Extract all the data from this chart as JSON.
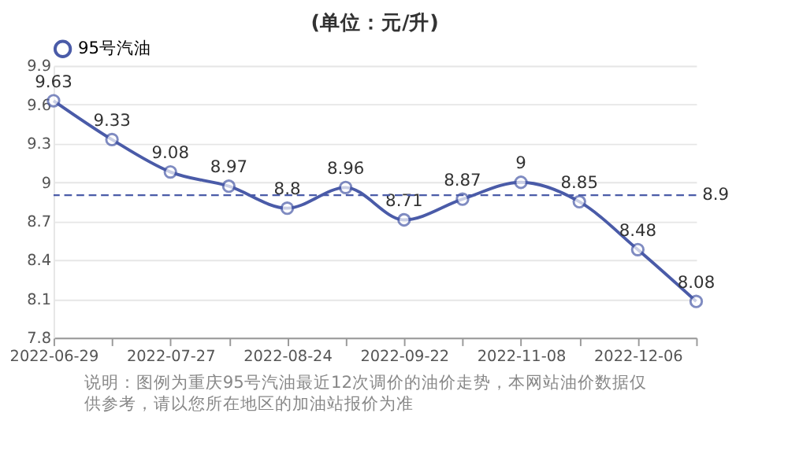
{
  "chart_data": {
    "type": "line",
    "title": "(单位：元/升)",
    "categories": [
      "2022-06-29",
      null,
      "2022-07-27",
      null,
      "2022-08-24",
      null,
      "2022-09-22",
      null,
      "2022-11-08",
      null,
      "2022-12-06",
      null
    ],
    "series": [
      {
        "name": "95号汽油",
        "color": "#4a5ba8",
        "values": [
          9.63,
          9.33,
          9.08,
          8.97,
          8.8,
          8.96,
          8.71,
          8.87,
          9,
          8.85,
          8.48,
          8.08
        ]
      }
    ],
    "ylim": [
      7.8,
      9.9
    ],
    "yticks": [
      7.8,
      8.1,
      8.4,
      8.7,
      9,
      9.3,
      9.6,
      9.9
    ],
    "ref_lines": [
      {
        "axis": "y",
        "value": 8.9,
        "label": "8.9",
        "line_style": "dashed",
        "color": "#4a5ba8"
      }
    ],
    "data_labels": true,
    "grid": "y",
    "legend": "top",
    "marker": "circle",
    "line_style": "solid",
    "annotations": [
      "说明：图例为重庆95号汽油最近12次调价的油价走势，本网站油价数据仅供参考，请以您所在地区的加油站报价为准"
    ]
  }
}
